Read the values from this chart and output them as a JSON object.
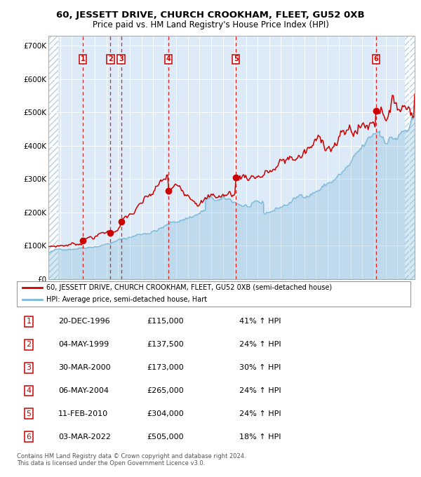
{
  "title": "60, JESSETT DRIVE, CHURCH CROOKHAM, FLEET, GU52 0XB",
  "subtitle": "Price paid vs. HM Land Registry's House Price Index (HPI)",
  "xlim": [
    1994.0,
    2025.5
  ],
  "ylim": [
    0,
    730000
  ],
  "yticks": [
    0,
    100000,
    200000,
    300000,
    400000,
    500000,
    600000,
    700000
  ],
  "ytick_labels": [
    "£0",
    "£100K",
    "£200K",
    "£300K",
    "£400K",
    "£500K",
    "£600K",
    "£700K"
  ],
  "sales": [
    {
      "num": 1,
      "date": "20-DEC-1996",
      "price": 115000,
      "year": 1996.97,
      "pct": "41%",
      "dir": "↑"
    },
    {
      "num": 2,
      "date": "04-MAY-1999",
      "price": 137500,
      "year": 1999.34,
      "pct": "24%",
      "dir": "↑"
    },
    {
      "num": 3,
      "date": "30-MAR-2000",
      "price": 173000,
      "year": 2000.25,
      "pct": "30%",
      "dir": "↑"
    },
    {
      "num": 4,
      "date": "06-MAY-2004",
      "price": 265000,
      "year": 2004.34,
      "pct": "24%",
      "dir": "↑"
    },
    {
      "num": 5,
      "date": "11-FEB-2010",
      "price": 304000,
      "year": 2010.12,
      "pct": "24%",
      "dir": "↑"
    },
    {
      "num": 6,
      "date": "03-MAR-2022",
      "price": 505000,
      "year": 2022.17,
      "pct": "18%",
      "dir": "↑"
    }
  ],
  "hpi_color": "#7ab8d9",
  "price_color": "#cc0000",
  "background_color": "#ddeaf7",
  "grid_color": "#ffffff",
  "vline_color": "#dd2222",
  "label_box_color": "#cc0000",
  "footer_text": "Contains HM Land Registry data © Crown copyright and database right 2024.\nThis data is licensed under the Open Government Licence v3.0.",
  "legend_line1": "60, JESSETT DRIVE, CHURCH CROOKHAM, FLEET, GU52 0XB (semi-detached house)",
  "legend_line2": "HPI: Average price, semi-detached house, Hart",
  "table_rows": [
    [
      "1",
      "20-DEC-1996",
      "£115,000",
      "41% ↑ HPI"
    ],
    [
      "2",
      "04-MAY-1999",
      "£137,500",
      "24% ↑ HPI"
    ],
    [
      "3",
      "30-MAR-2000",
      "£173,000",
      "30% ↑ HPI"
    ],
    [
      "4",
      "06-MAY-2004",
      "£265,000",
      "24% ↑ HPI"
    ],
    [
      "5",
      "11-FEB-2010",
      "£304,000",
      "24% ↑ HPI"
    ],
    [
      "6",
      "03-MAR-2022",
      "£505,000",
      "18% ↑ HPI"
    ]
  ]
}
